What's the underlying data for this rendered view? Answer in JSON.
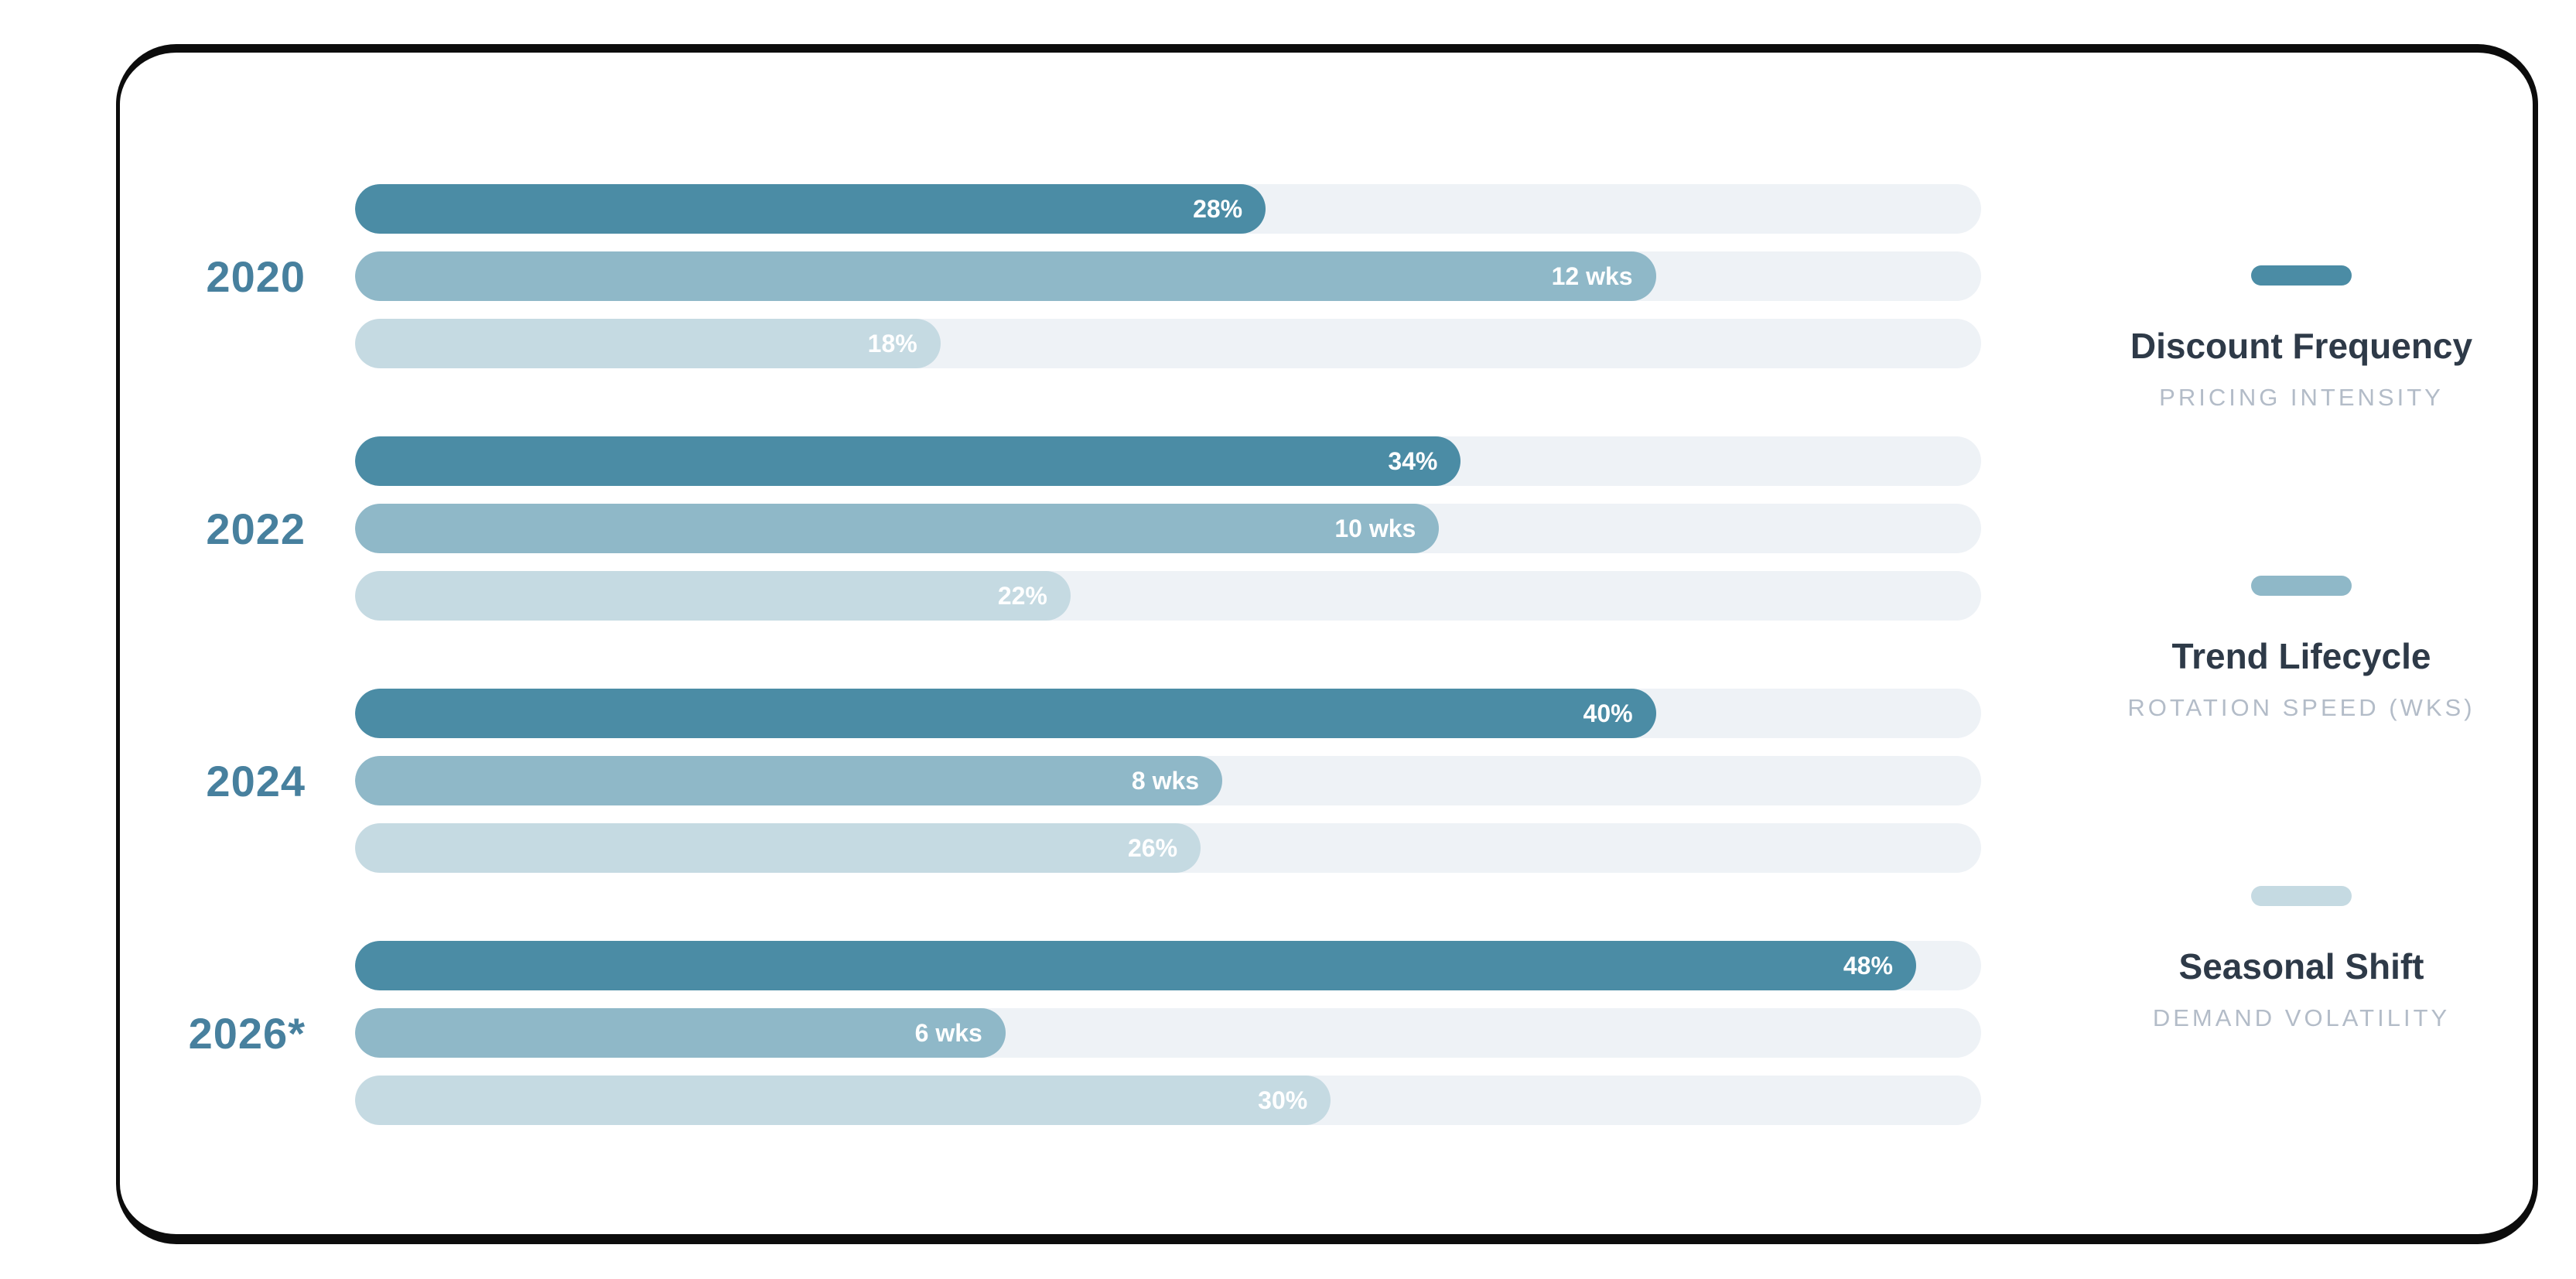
{
  "chart_data": {
    "type": "bar",
    "orientation": "horizontal",
    "categories": [
      "2020",
      "2022",
      "2024",
      "2026*"
    ],
    "series": [
      {
        "name": "Discount Frequency",
        "sublabel": "PRICING INTENSITY",
        "color": "#4b8ca5",
        "values": [
          28,
          34,
          40,
          48
        ],
        "value_labels": [
          "28%",
          "34%",
          "40%",
          "48%"
        ],
        "axis_max": 50
      },
      {
        "name": "Trend Lifecycle",
        "sublabel": "ROTATION SPEED (WKS)",
        "color": "#8fb8c8",
        "values": [
          12,
          10,
          8,
          6
        ],
        "value_labels": [
          "12 wks",
          "10 wks",
          "8 wks",
          "6 wks"
        ],
        "axis_max": 15
      },
      {
        "name": "Seasonal Shift",
        "sublabel": "DEMAND VOLATILITY",
        "color": "#c5dae2",
        "values": [
          18,
          22,
          26,
          30
        ],
        "value_labels": [
          "18%",
          "22%",
          "26%",
          "30%"
        ],
        "axis_max": 50
      }
    ],
    "legend_position": "right",
    "grid": false,
    "track_color": "#eef2f6"
  },
  "colors": {
    "frame": "#0c0c0c",
    "card_background": "#ffffff",
    "track": "#eef2f6",
    "year_label": "#47809e",
    "legend_title": "#2e3a48",
    "legend_sublabel": "#b3bcc8",
    "bar_value_text": "#ffffff"
  }
}
